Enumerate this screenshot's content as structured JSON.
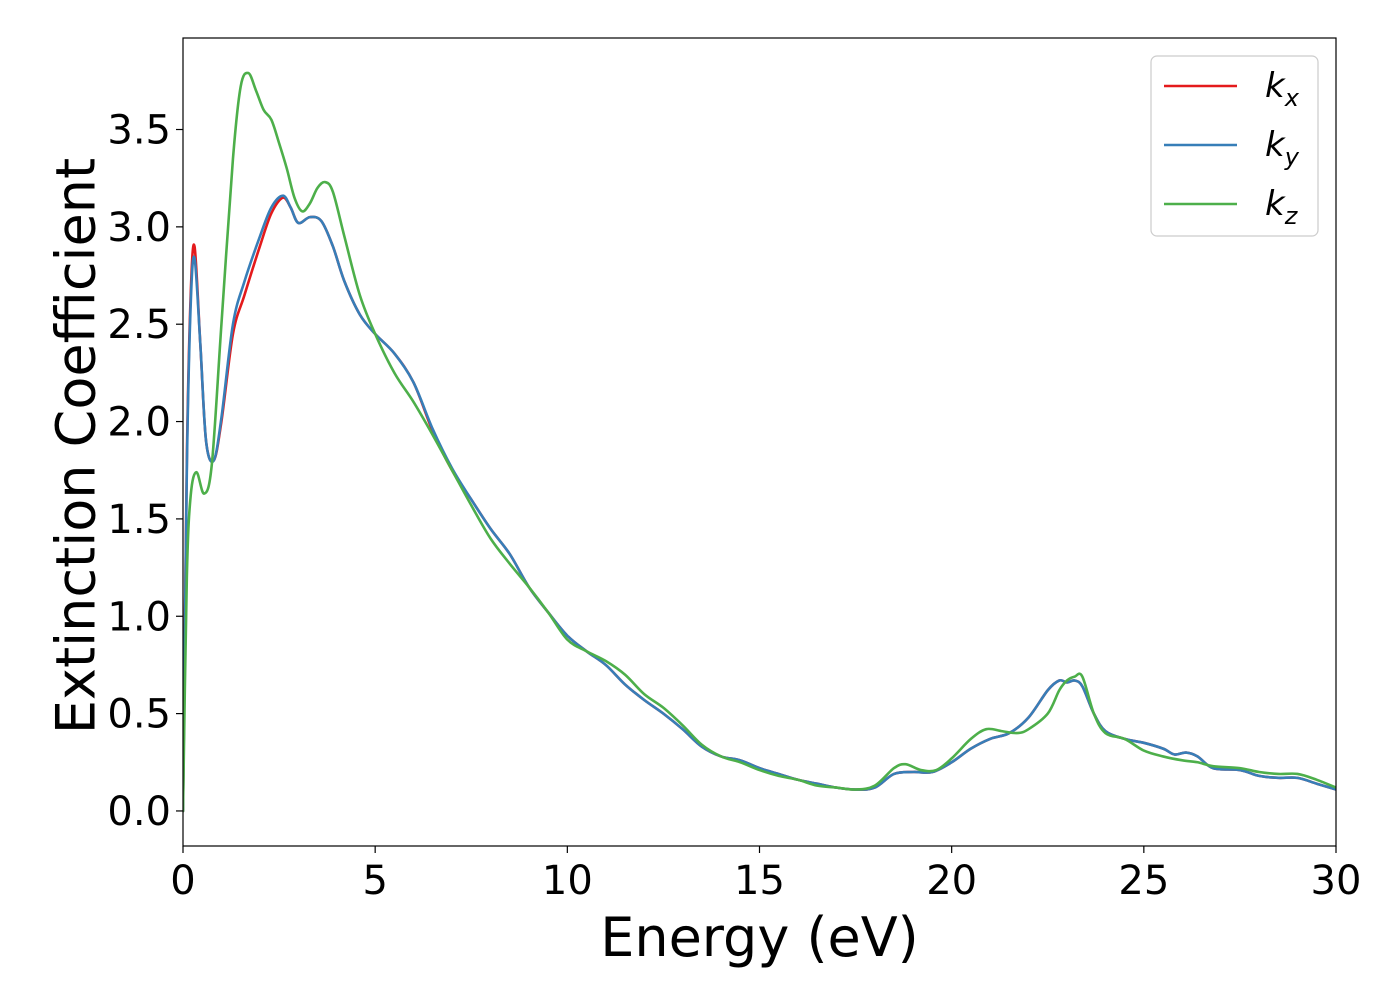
{
  "chart_data": {
    "type": "line",
    "xlabel": "Energy (eV)",
    "ylabel": "Extinction Coefficient",
    "xlim": [
      0,
      30
    ],
    "ylim": [
      -0.18,
      3.97
    ],
    "xticks": [
      0,
      5,
      10,
      15,
      20,
      25,
      30
    ],
    "xtick_labels": [
      "0",
      "5",
      "10",
      "15",
      "20",
      "25",
      "30"
    ],
    "yticks": [
      0.0,
      0.5,
      1.0,
      1.5,
      2.0,
      2.5,
      3.0,
      3.5
    ],
    "ytick_labels": [
      "0.0",
      "0.5",
      "1.0",
      "1.5",
      "2.0",
      "2.5",
      "3.0",
      "3.5"
    ],
    "grid": false,
    "legend_position": "top-right",
    "series": [
      {
        "name": "k",
        "sub": "x",
        "color": "#e41a1c",
        "x": [
          0,
          0.1,
          0.2,
          0.3,
          0.45,
          0.6,
          0.8,
          1.0,
          1.3,
          1.6,
          2.0,
          2.3,
          2.6,
          2.8,
          3.0,
          3.3,
          3.6,
          3.9,
          4.2,
          4.6,
          5.0,
          5.5,
          6.0,
          6.5,
          7.0,
          7.5,
          8.0,
          8.5,
          9.0,
          9.5,
          10.0,
          10.5,
          11.0,
          11.5,
          12.0,
          12.5,
          13.0,
          13.5,
          14.0,
          14.5,
          15.0,
          15.5,
          16.0,
          16.5,
          17.0,
          17.5,
          18.0,
          18.5,
          19.0,
          19.5,
          20.0,
          20.5,
          21.0,
          21.5,
          22.0,
          22.5,
          22.8,
          23.0,
          23.2,
          23.4,
          23.7,
          24.0,
          24.5,
          25.0,
          25.5,
          25.8,
          26.1,
          26.4,
          26.8,
          27.5,
          28.0,
          28.5,
          29.0,
          29.5,
          30.0
        ],
        "y": [
          0.0,
          1.8,
          2.65,
          2.9,
          2.4,
          1.9,
          1.8,
          2.0,
          2.45,
          2.65,
          2.9,
          3.07,
          3.15,
          3.1,
          3.02,
          3.05,
          3.03,
          2.9,
          2.72,
          2.55,
          2.45,
          2.35,
          2.2,
          1.95,
          1.75,
          1.6,
          1.45,
          1.32,
          1.15,
          1.02,
          0.9,
          0.82,
          0.75,
          0.65,
          0.57,
          0.5,
          0.42,
          0.33,
          0.28,
          0.26,
          0.22,
          0.19,
          0.16,
          0.14,
          0.12,
          0.11,
          0.12,
          0.19,
          0.2,
          0.2,
          0.25,
          0.32,
          0.37,
          0.4,
          0.48,
          0.62,
          0.67,
          0.66,
          0.67,
          0.64,
          0.5,
          0.41,
          0.37,
          0.35,
          0.32,
          0.29,
          0.3,
          0.28,
          0.22,
          0.21,
          0.18,
          0.17,
          0.17,
          0.14,
          0.11
        ]
      },
      {
        "name": "k",
        "sub": "y",
        "color": "#377eb8",
        "x": [
          0,
          0.1,
          0.2,
          0.3,
          0.45,
          0.6,
          0.8,
          1.0,
          1.3,
          1.6,
          2.0,
          2.3,
          2.6,
          2.8,
          3.0,
          3.3,
          3.6,
          3.9,
          4.2,
          4.6,
          5.0,
          5.5,
          6.0,
          6.5,
          7.0,
          7.5,
          8.0,
          8.5,
          9.0,
          9.5,
          10.0,
          10.5,
          11.0,
          11.5,
          12.0,
          12.5,
          13.0,
          13.5,
          14.0,
          14.5,
          15.0,
          15.5,
          16.0,
          16.5,
          17.0,
          17.5,
          18.0,
          18.5,
          19.0,
          19.5,
          20.0,
          20.5,
          21.0,
          21.5,
          22.0,
          22.5,
          22.8,
          23.0,
          23.2,
          23.4,
          23.7,
          24.0,
          24.5,
          25.0,
          25.5,
          25.8,
          26.1,
          26.4,
          26.8,
          27.5,
          28.0,
          28.5,
          29.0,
          29.5,
          30.0
        ],
        "y": [
          0.0,
          1.75,
          2.6,
          2.84,
          2.4,
          1.9,
          1.8,
          2.02,
          2.5,
          2.72,
          2.95,
          3.1,
          3.16,
          3.1,
          3.02,
          3.05,
          3.03,
          2.9,
          2.72,
          2.55,
          2.45,
          2.35,
          2.2,
          1.96,
          1.76,
          1.6,
          1.45,
          1.32,
          1.15,
          1.02,
          0.9,
          0.82,
          0.75,
          0.65,
          0.57,
          0.5,
          0.42,
          0.33,
          0.28,
          0.26,
          0.22,
          0.19,
          0.16,
          0.14,
          0.12,
          0.11,
          0.12,
          0.19,
          0.2,
          0.2,
          0.25,
          0.32,
          0.37,
          0.4,
          0.48,
          0.62,
          0.67,
          0.66,
          0.67,
          0.64,
          0.5,
          0.41,
          0.37,
          0.35,
          0.32,
          0.29,
          0.3,
          0.28,
          0.22,
          0.21,
          0.18,
          0.17,
          0.17,
          0.14,
          0.11
        ]
      },
      {
        "name": "k",
        "sub": "z",
        "color": "#4daf4a",
        "x": [
          0,
          0.1,
          0.2,
          0.35,
          0.55,
          0.75,
          1.0,
          1.3,
          1.5,
          1.7,
          1.9,
          2.1,
          2.3,
          2.5,
          2.7,
          2.9,
          3.1,
          3.3,
          3.5,
          3.7,
          3.9,
          4.2,
          4.6,
          5.0,
          5.5,
          6.0,
          6.5,
          7.0,
          7.5,
          8.0,
          8.5,
          9.0,
          9.5,
          10.0,
          10.5,
          11.0,
          11.5,
          12.0,
          12.5,
          13.0,
          13.5,
          14.0,
          14.5,
          15.0,
          15.5,
          16.0,
          16.5,
          17.0,
          17.5,
          18.0,
          18.5,
          18.8,
          19.2,
          19.6,
          20.0,
          20.5,
          20.9,
          21.3,
          21.7,
          22.0,
          22.5,
          22.8,
          23.0,
          23.2,
          23.4,
          23.7,
          24.0,
          24.5,
          25.0,
          25.5,
          26.0,
          26.4,
          26.8,
          27.5,
          28.0,
          28.5,
          29.0,
          29.5,
          30.0
        ],
        "y": [
          0.0,
          1.2,
          1.62,
          1.74,
          1.63,
          1.78,
          2.5,
          3.35,
          3.72,
          3.79,
          3.7,
          3.6,
          3.55,
          3.43,
          3.3,
          3.15,
          3.08,
          3.12,
          3.2,
          3.23,
          3.18,
          2.95,
          2.65,
          2.45,
          2.25,
          2.1,
          1.93,
          1.75,
          1.57,
          1.4,
          1.27,
          1.15,
          1.02,
          0.88,
          0.82,
          0.77,
          0.7,
          0.6,
          0.53,
          0.44,
          0.34,
          0.28,
          0.25,
          0.21,
          0.18,
          0.16,
          0.13,
          0.12,
          0.11,
          0.13,
          0.22,
          0.24,
          0.21,
          0.21,
          0.27,
          0.37,
          0.42,
          0.41,
          0.4,
          0.42,
          0.5,
          0.62,
          0.67,
          0.69,
          0.69,
          0.5,
          0.4,
          0.37,
          0.31,
          0.28,
          0.26,
          0.25,
          0.23,
          0.22,
          0.2,
          0.19,
          0.19,
          0.16,
          0.12
        ]
      }
    ]
  }
}
